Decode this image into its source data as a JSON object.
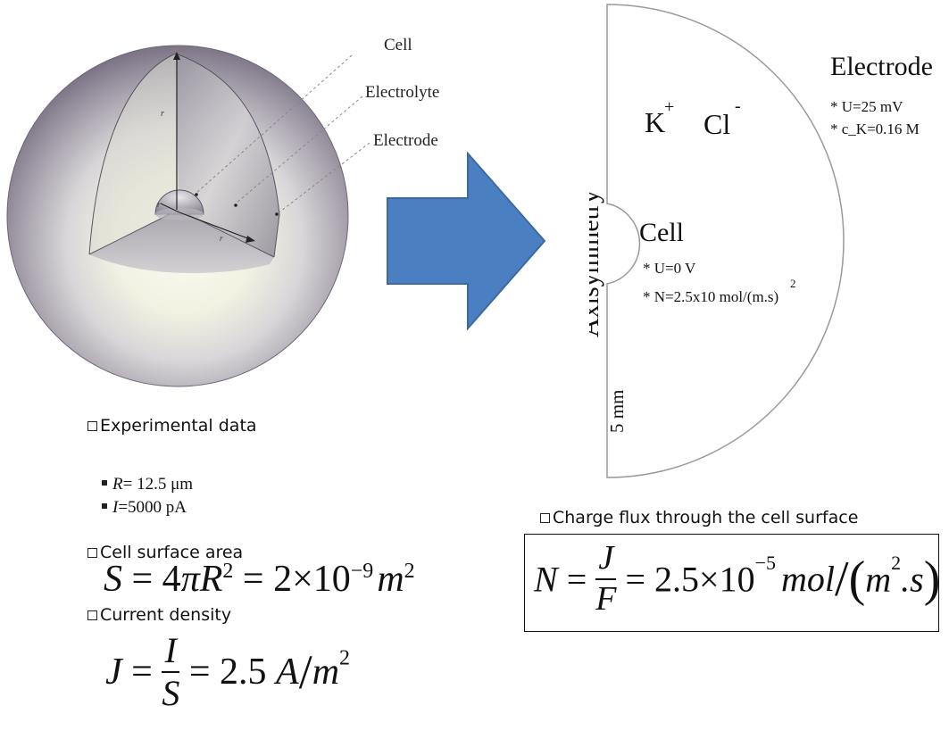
{
  "sphere_labels": {
    "cell": "Cell",
    "electrolyte": "Electrolyte",
    "electrode": "Electrode",
    "rr": "r",
    "r0": "r",
    "r": "r"
  },
  "right_diagram": {
    "electrode_title": "Electrode",
    "electrode_u": "* U=25 mV",
    "electrode_c": "* c_K=0.16 M",
    "ion_k": "K",
    "ion_k_sup": "+",
    "ion_cl": "Cl",
    "ion_cl_sup": "-",
    "axis_label": "Axisymmetry",
    "cell_title": "Cell",
    "cell_u": "* U=0 V",
    "cell_n": "* N=2.5x10 mol/(m.s)",
    "cell_n_sup": "2",
    "radius_label": "5 mm"
  },
  "colors": {
    "arrow_fill": "#4a7fc1",
    "arrow_stroke": "#3a69a6"
  },
  "experimental": {
    "heading": "Experimental data",
    "r_label": "R",
    "r_value": "= 12.5 μm",
    "i_label": "I",
    "i_value": "=5000 pA"
  },
  "surface_area": {
    "heading": "Cell surface area",
    "equation_parts": {
      "lhs": "S",
      "eq1": " = 4",
      "pi": "π",
      "R": "R",
      "R_exp": "2",
      "eq2": " = 2×10",
      "exp": "−9",
      "unit_m": "m",
      "unit_exp": "2"
    }
  },
  "current_density": {
    "heading": "Current density",
    "equation_parts": {
      "lhs": "J",
      "eq1": " = ",
      "num": "I",
      "den": "S",
      "eq2": " = 2.5 ",
      "unit_A": "A",
      "slash": "/",
      "unit_m": "m",
      "unit_exp": "2"
    }
  },
  "charge_flux": {
    "heading": "Charge flux through the cell surface",
    "equation_parts": {
      "lhs": "N",
      "eq1": " = ",
      "num": "J",
      "den": "F",
      "eq2": " = 2.5×10",
      "exp": "−5",
      "unit_mol": "mol",
      "slash": "/",
      "paren_open": "(",
      "unit_m": "m",
      "unit_m_exp": "2",
      "unit_s": ".s",
      "paren_close": ")"
    }
  }
}
